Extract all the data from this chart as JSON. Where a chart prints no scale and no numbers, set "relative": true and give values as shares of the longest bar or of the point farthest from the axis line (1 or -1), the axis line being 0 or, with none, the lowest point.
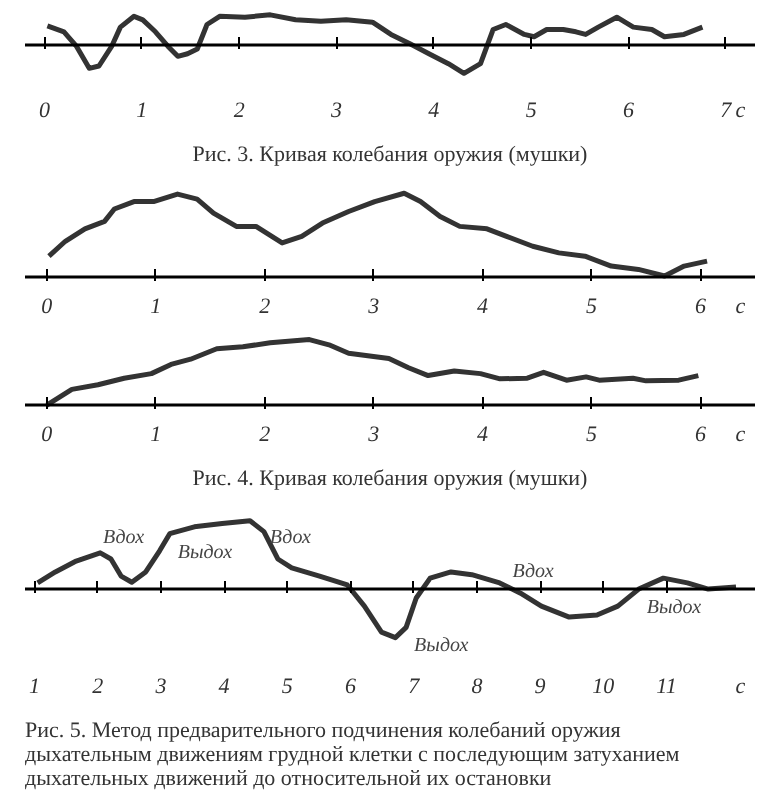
{
  "chart_data": [
    {
      "type": "line",
      "relative": true,
      "xlabel": "c",
      "xlim": [
        -0.2,
        7.3
      ],
      "xticks": [
        0,
        1,
        2,
        3,
        4,
        5,
        6,
        7
      ],
      "tick_labels": "x",
      "color": "#333333",
      "x": [
        0.03,
        0.2,
        0.33,
        0.46,
        0.56,
        0.69,
        0.78,
        0.92,
        1.01,
        1.14,
        1.27,
        1.37,
        1.47,
        1.57,
        1.67,
        1.8,
        2.06,
        2.32,
        2.58,
        2.84,
        3.1,
        3.37,
        3.56,
        3.76,
        3.95,
        4.15,
        4.31,
        4.48,
        4.61,
        4.74,
        4.93,
        5.03,
        5.16,
        5.33,
        5.46,
        5.56,
        5.69,
        5.88,
        6.05,
        6.24,
        6.37,
        6.57,
        6.76
      ],
      "values": [
        0.62,
        0.42,
        -0.08,
        -0.83,
        -0.75,
        -0.08,
        0.58,
        0.95,
        0.83,
        0.42,
        -0.08,
        -0.42,
        -0.33,
        -0.17,
        0.67,
        0.95,
        0.92,
        1.0,
        0.83,
        0.78,
        0.83,
        0.75,
        0.33,
        0,
        -0.33,
        -0.67,
        -1.0,
        -0.67,
        0.5,
        0.67,
        0.33,
        0.25,
        0.5,
        0.5,
        0.42,
        0.33,
        0.58,
        0.92,
        0.58,
        0.5,
        0.25,
        0.33,
        0.58
      ],
      "annotations": [
        "Рис. 3. Кривая колебания оружия (мушки)"
      ]
    },
    {
      "type": "line",
      "relative": true,
      "xlabel": "c",
      "xlim": [
        -0.2,
        6.5
      ],
      "xticks": [
        0,
        1,
        2,
        3,
        4,
        5,
        6
      ],
      "tick_labels": "x",
      "color": "#333333",
      "x": [
        0.02,
        0.17,
        0.35,
        0.53,
        0.62,
        0.8,
        0.98,
        1.2,
        1.38,
        1.53,
        1.74,
        1.92,
        2.16,
        2.34,
        2.53,
        2.77,
        3.01,
        3.28,
        3.43,
        3.61,
        3.79,
        4.04,
        4.22,
        4.46,
        4.7,
        4.94,
        5.18,
        5.43,
        5.67,
        5.85,
        6.06
      ],
      "values": [
        0.24,
        0.42,
        0.57,
        0.66,
        0.81,
        0.9,
        0.9,
        0.99,
        0.93,
        0.76,
        0.6,
        0.6,
        0.4,
        0.48,
        0.64,
        0.78,
        0.9,
        1.0,
        0.9,
        0.72,
        0.6,
        0.57,
        0.48,
        0.36,
        0.28,
        0.24,
        0.12,
        0.08,
        0,
        0.12,
        0.18
      ]
    },
    {
      "type": "line",
      "relative": true,
      "xlabel": "c",
      "xlim": [
        -0.2,
        6.5
      ],
      "xticks": [
        0,
        1,
        2,
        3,
        4,
        5,
        6
      ],
      "tick_labels": "x",
      "color": "#333333",
      "x": [
        0,
        0.23,
        0.47,
        0.71,
        0.96,
        1.14,
        1.32,
        1.56,
        1.8,
        2.05,
        2.41,
        2.59,
        2.77,
        3.14,
        3.32,
        3.5,
        3.74,
        3.98,
        4.16,
        4.41,
        4.56,
        4.77,
        4.95,
        5.07,
        5.38,
        5.5,
        5.8,
        5.98
      ],
      "values": [
        0,
        0.24,
        0.31,
        0.41,
        0.48,
        0.62,
        0.7,
        0.86,
        0.89,
        0.95,
        1.0,
        0.92,
        0.79,
        0.71,
        0.57,
        0.45,
        0.52,
        0.48,
        0.4,
        0.41,
        0.5,
        0.38,
        0.43,
        0.38,
        0.41,
        0.37,
        0.38,
        0.45
      ],
      "annotations": [
        "Рис. 4. Кривая колебания оружия (мушки)"
      ]
    },
    {
      "type": "line",
      "relative": true,
      "xlabel": "c",
      "xlim": [
        0.85,
        12.4
      ],
      "xticks": [
        1,
        2,
        3,
        4,
        5,
        6,
        7,
        8,
        9,
        10,
        11
      ],
      "tick_labels": "x",
      "color": "#333333",
      "x": [
        1.05,
        1.33,
        1.66,
        2.04,
        2.21,
        2.37,
        2.54,
        2.76,
        2.98,
        3.14,
        3.53,
        3.97,
        4.41,
        4.63,
        4.85,
        5.07,
        5.51,
        5.95,
        6.22,
        6.49,
        6.71,
        6.88,
        7.04,
        7.26,
        7.59,
        7.92,
        8.36,
        8.69,
        9.02,
        9.46,
        9.9,
        10.23,
        10.56,
        10.95,
        11.33,
        11.66,
        12.1
      ],
      "values": [
        0.09,
        0.25,
        0.41,
        0.53,
        0.44,
        0.19,
        0.1,
        0.25,
        0.56,
        0.81,
        0.91,
        0.96,
        1.0,
        0.84,
        0.44,
        0.31,
        0.19,
        0.06,
        -0.25,
        -0.63,
        -0.71,
        -0.56,
        -0.13,
        0.16,
        0.25,
        0.21,
        0.09,
        -0.06,
        -0.25,
        -0.41,
        -0.38,
        -0.25,
        0,
        0.16,
        0.09,
        0,
        0.03
      ],
      "annotations": [
        {
          "text": "Вдох",
          "x": 2.21,
          "y": 0.44
        },
        {
          "text": "Выдох",
          "x": 3.14,
          "y": 0.81
        },
        {
          "text": "Вдох",
          "x": 4.85,
          "y": 0.44
        },
        {
          "text": "Выдох",
          "x": 6.88,
          "y": -0.56
        },
        {
          "text": "Вдох",
          "x": 8.69,
          "y": -0.06
        },
        {
          "text": "Выдох",
          "x": 10.56,
          "y": 0
        },
        "Рис. 5. Метод предварительного подчинения колебаний оружия дыхательным движениям грудной клетки с последующим затуханием дыхательных движений до относительной их остановки"
      ]
    }
  ]
}
